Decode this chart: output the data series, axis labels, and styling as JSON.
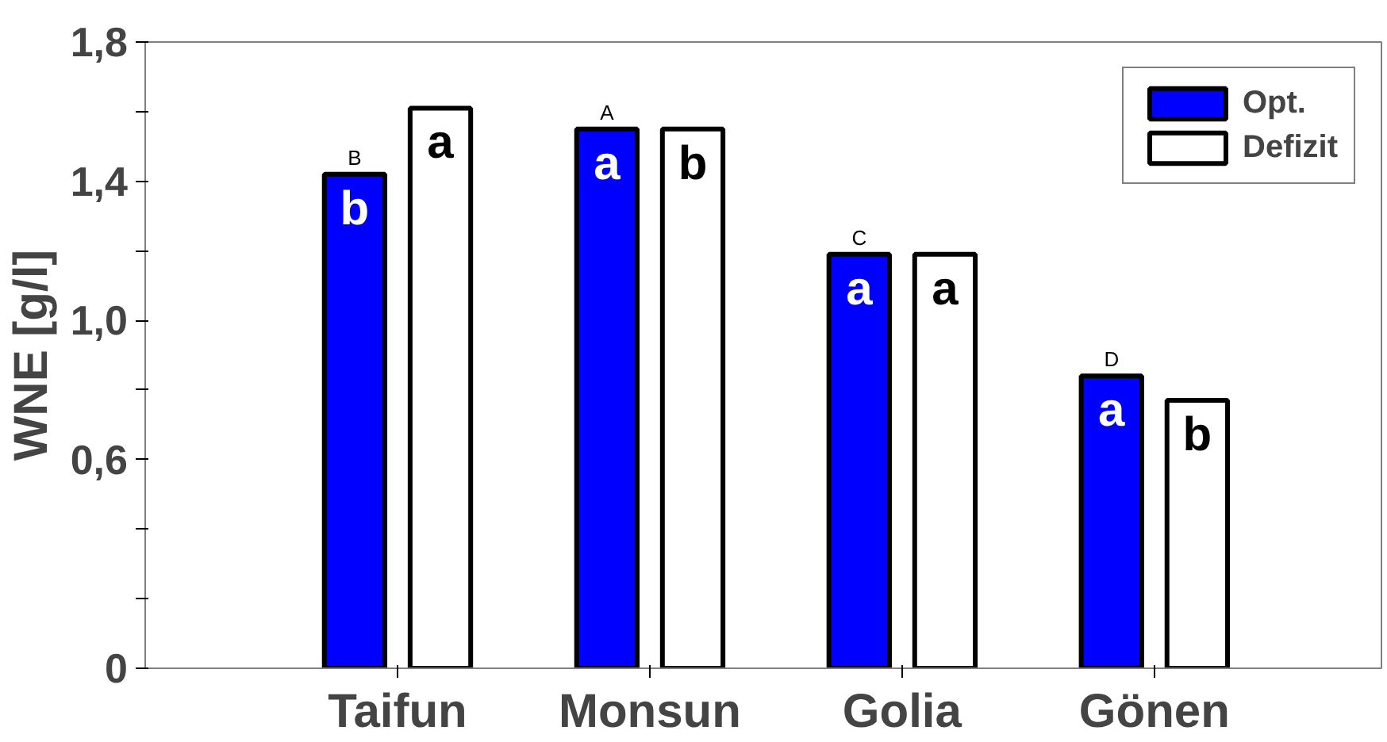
{
  "chart_data": {
    "type": "bar",
    "ylabel": "WNE [g/l]",
    "categories": [
      "Taifun",
      "Monsun",
      "Golia",
      "Gönen"
    ],
    "series": [
      {
        "name": "Opt.",
        "color": "#0000ff",
        "values": [
          1.42,
          1.55,
          1.19,
          0.84
        ],
        "value_labels": [
          "b",
          "a",
          "a",
          "a"
        ]
      },
      {
        "name": "Defizit",
        "color": "#ffffff",
        "values": [
          1.61,
          1.55,
          1.19,
          0.77
        ],
        "value_labels": [
          "a",
          "b",
          "a",
          "b"
        ]
      }
    ],
    "annotations": [
      "B",
      "A",
      "C",
      "D"
    ],
    "ylim": [
      0,
      1.8
    ],
    "yticks": [
      0,
      {
        "value": 0.2,
        "label": null
      },
      {
        "value": 0.4,
        "label": null
      },
      {
        "value": 0.6,
        "label": "0,6"
      },
      {
        "value": 0.8,
        "label": null
      },
      {
        "value": 1.0,
        "label": "1,0"
      },
      {
        "value": 1.2,
        "label": null
      },
      {
        "value": 1.4,
        "label": "1,4"
      },
      {
        "value": 1.6,
        "label": null
      },
      {
        "value": 1.8,
        "label": "1,8"
      }
    ],
    "grid": false,
    "legend": "top right"
  }
}
